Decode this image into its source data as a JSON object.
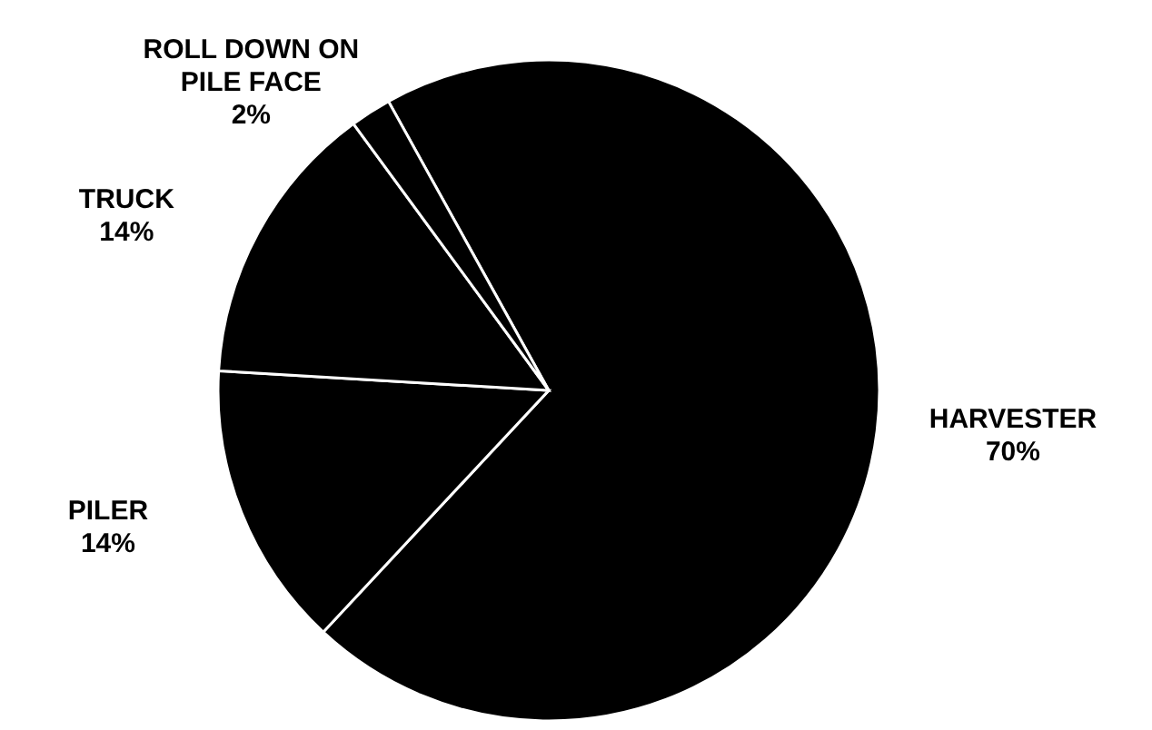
{
  "chart_data": {
    "type": "pie",
    "categories": [
      "HARVESTER",
      "PILER",
      "TRUCK",
      "ROLL DOWN ON PILE FACE"
    ],
    "values": [
      70,
      14,
      14,
      2
    ],
    "value_labels": [
      "70%",
      "14%",
      "14%",
      "2%"
    ],
    "colors": [
      "#000000",
      "#000000",
      "#000000",
      "#000000"
    ]
  }
}
